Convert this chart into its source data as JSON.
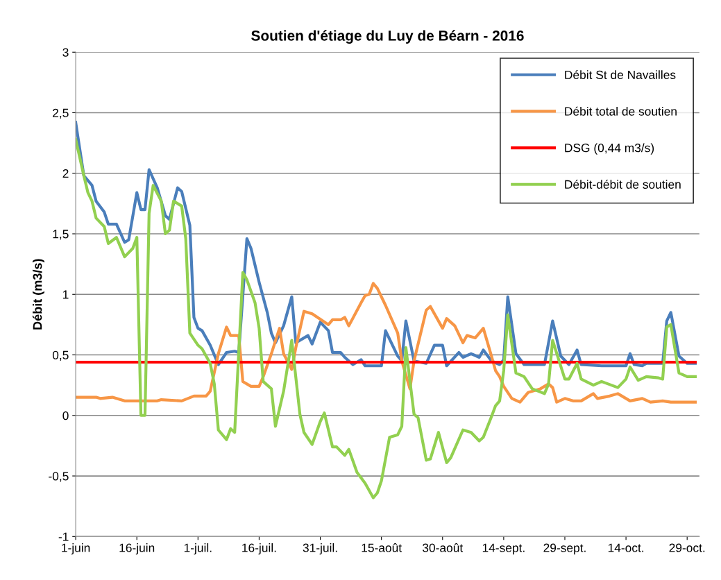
{
  "chart_data": {
    "type": "line",
    "title": "Soutien d'étiage du Luy de Béarn - 2016",
    "ylabel": "Débit (m3/s)",
    "xlim": [
      "2016-06-01",
      "2016-11-01"
    ],
    "xticks": [
      {
        "value": "2016-06-01",
        "label": "1-juin"
      },
      {
        "value": "2016-06-16",
        "label": "16-juin"
      },
      {
        "value": "2016-07-01",
        "label": "1-juil."
      },
      {
        "value": "2016-07-16",
        "label": "16-juil."
      },
      {
        "value": "2016-07-31",
        "label": "31-juil."
      },
      {
        "value": "2016-08-15",
        "label": "15-août"
      },
      {
        "value": "2016-08-30",
        "label": "30-août"
      },
      {
        "value": "2016-09-14",
        "label": "14-sept."
      },
      {
        "value": "2016-09-29",
        "label": "29-sept."
      },
      {
        "value": "2016-10-14",
        "label": "14-oct."
      },
      {
        "value": "2016-10-29",
        "label": "29-oct."
      }
    ],
    "ylim": [
      -1,
      3
    ],
    "yticks": [
      {
        "value": -1,
        "label": "-1"
      },
      {
        "value": -0.5,
        "label": "-0,5"
      },
      {
        "value": 0,
        "label": "0"
      },
      {
        "value": 0.5,
        "label": "0,5"
      },
      {
        "value": 1,
        "label": "1"
      },
      {
        "value": 1.5,
        "label": "1,5"
      },
      {
        "value": 2,
        "label": "2"
      },
      {
        "value": 2.5,
        "label": "2,5"
      },
      {
        "value": 3,
        "label": "3"
      }
    ],
    "grid": "y",
    "legend": "top right",
    "series": [
      {
        "name": "Débit St de Navailles",
        "color": "#4a7ebb",
        "x": [
          "2016-06-01",
          "2016-06-03",
          "2016-06-05",
          "2016-06-06",
          "2016-06-08",
          "2016-06-09",
          "2016-06-11",
          "2016-06-13",
          "2016-06-14",
          "2016-06-16",
          "2016-06-17",
          "2016-06-18",
          "2016-06-19",
          "2016-06-21",
          "2016-06-23",
          "2016-06-24",
          "2016-06-26",
          "2016-06-27",
          "2016-06-29",
          "2016-06-30",
          "2016-07-01",
          "2016-07-02",
          "2016-07-04",
          "2016-07-06",
          "2016-07-08",
          "2016-07-10",
          "2016-07-11",
          "2016-07-13",
          "2016-07-14",
          "2016-07-16",
          "2016-07-18",
          "2016-07-19",
          "2016-07-20",
          "2016-07-22",
          "2016-07-24",
          "2016-07-25",
          "2016-07-28",
          "2016-07-29",
          "2016-07-31",
          "2016-08-02",
          "2016-08-03",
          "2016-08-05",
          "2016-08-06",
          "2016-08-08",
          "2016-08-10",
          "2016-08-11",
          "2016-08-15",
          "2016-08-16",
          "2016-08-19",
          "2016-08-20",
          "2016-08-21",
          "2016-08-23",
          "2016-08-26",
          "2016-08-28",
          "2016-08-30",
          "2016-08-31",
          "2016-09-03",
          "2016-09-04",
          "2016-09-06",
          "2016-09-08",
          "2016-09-09",
          "2016-09-11",
          "2016-09-13",
          "2016-09-14",
          "2016-09-15",
          "2016-09-17",
          "2016-09-19",
          "2016-09-24",
          "2016-09-26",
          "2016-09-28",
          "2016-09-30",
          "2016-10-02",
          "2016-10-03",
          "2016-10-08",
          "2016-10-14",
          "2016-10-15",
          "2016-10-16",
          "2016-10-18",
          "2016-10-19",
          "2016-10-23",
          "2016-10-24",
          "2016-10-25",
          "2016-10-27",
          "2016-10-29",
          "2016-10-31"
        ],
        "values": [
          2.42,
          1.98,
          1.9,
          1.77,
          1.68,
          1.58,
          1.58,
          1.43,
          1.45,
          1.84,
          1.7,
          1.7,
          2.03,
          1.88,
          1.65,
          1.62,
          1.88,
          1.85,
          1.57,
          0.81,
          0.72,
          0.7,
          0.58,
          0.42,
          0.52,
          0.53,
          0.52,
          1.46,
          1.38,
          1.1,
          0.85,
          0.68,
          0.6,
          0.74,
          0.98,
          0.6,
          0.66,
          0.59,
          0.77,
          0.7,
          0.52,
          0.52,
          0.48,
          0.42,
          0.46,
          0.41,
          0.41,
          0.7,
          0.49,
          0.45,
          0.78,
          0.45,
          0.43,
          0.58,
          0.58,
          0.41,
          0.52,
          0.48,
          0.51,
          0.48,
          0.54,
          0.45,
          0.42,
          0.46,
          0.98,
          0.51,
          0.42,
          0.42,
          0.78,
          0.49,
          0.42,
          0.54,
          0.42,
          0.41,
          0.41,
          0.51,
          0.42,
          0.41,
          0.43,
          0.43,
          0.78,
          0.85,
          0.49,
          0.43,
          0.43
        ]
      },
      {
        "name": "Débit total de soutien",
        "color": "#f79646",
        "x": [
          "2016-06-01",
          "2016-06-06",
          "2016-06-07",
          "2016-06-10",
          "2016-06-13",
          "2016-06-21",
          "2016-06-22",
          "2016-06-27",
          "2016-06-30",
          "2016-07-03",
          "2016-07-04",
          "2016-07-06",
          "2016-07-08",
          "2016-07-09",
          "2016-07-11",
          "2016-07-12",
          "2016-07-14",
          "2016-07-16",
          "2016-07-17",
          "2016-07-19",
          "2016-07-21",
          "2016-07-22",
          "2016-07-24",
          "2016-07-25",
          "2016-07-27",
          "2016-07-29",
          "2016-08-02",
          "2016-08-03",
          "2016-08-05",
          "2016-08-06",
          "2016-08-07",
          "2016-08-10",
          "2016-08-11",
          "2016-08-12",
          "2016-08-13",
          "2016-08-14",
          "2016-08-16",
          "2016-08-19",
          "2016-08-20",
          "2016-08-22",
          "2016-08-23",
          "2016-08-26",
          "2016-08-27",
          "2016-08-30",
          "2016-08-31",
          "2016-09-02",
          "2016-09-04",
          "2016-09-05",
          "2016-09-07",
          "2016-09-09",
          "2016-09-11",
          "2016-09-12",
          "2016-09-13",
          "2016-09-14",
          "2016-09-16",
          "2016-09-18",
          "2016-09-20",
          "2016-09-23",
          "2016-09-25",
          "2016-09-26",
          "2016-09-27",
          "2016-09-29",
          "2016-10-01",
          "2016-10-03",
          "2016-10-06",
          "2016-10-07",
          "2016-10-10",
          "2016-10-12",
          "2016-10-15",
          "2016-10-18",
          "2016-10-20",
          "2016-10-23",
          "2016-10-25",
          "2016-10-31"
        ],
        "values": [
          0.15,
          0.15,
          0.14,
          0.15,
          0.12,
          0.12,
          0.13,
          0.12,
          0.16,
          0.16,
          0.2,
          0.51,
          0.73,
          0.66,
          0.66,
          0.28,
          0.24,
          0.24,
          0.32,
          0.51,
          0.72,
          0.51,
          0.38,
          0.56,
          0.86,
          0.84,
          0.75,
          0.79,
          0.79,
          0.81,
          0.74,
          0.93,
          0.99,
          1.0,
          1.09,
          1.05,
          0.91,
          0.68,
          0.45,
          0.22,
          0.45,
          0.87,
          0.9,
          0.72,
          0.8,
          0.74,
          0.6,
          0.66,
          0.64,
          0.72,
          0.49,
          0.37,
          0.32,
          0.24,
          0.14,
          0.11,
          0.19,
          0.22,
          0.26,
          0.23,
          0.11,
          0.14,
          0.12,
          0.12,
          0.18,
          0.14,
          0.16,
          0.18,
          0.12,
          0.14,
          0.11,
          0.12,
          0.11,
          0.11
        ]
      },
      {
        "name": "DSG (0,44 m3/s)",
        "color": "#ff0000",
        "x": [
          "2016-06-01",
          "2016-10-31"
        ],
        "values": [
          0.44,
          0.44
        ]
      },
      {
        "name": "Débit-débit de soutien",
        "color": "#92d050",
        "x": [
          "2016-06-01",
          "2016-06-03",
          "2016-06-04",
          "2016-06-05",
          "2016-06-06",
          "2016-06-08",
          "2016-06-09",
          "2016-06-11",
          "2016-06-13",
          "2016-06-15",
          "2016-06-16",
          "2016-06-17",
          "2016-06-18",
          "2016-06-19",
          "2016-06-20",
          "2016-06-22",
          "2016-06-23",
          "2016-06-24",
          "2016-06-25",
          "2016-06-27",
          "2016-06-28",
          "2016-06-29",
          "2016-07-01",
          "2016-07-02",
          "2016-07-04",
          "2016-07-05",
          "2016-07-06",
          "2016-07-08",
          "2016-07-09",
          "2016-07-10",
          "2016-07-12",
          "2016-07-13",
          "2016-07-15",
          "2016-07-16",
          "2016-07-17",
          "2016-07-19",
          "2016-07-20",
          "2016-07-22",
          "2016-07-24",
          "2016-07-26",
          "2016-07-27",
          "2016-07-29",
          "2016-07-31",
          "2016-08-01",
          "2016-08-03",
          "2016-08-04",
          "2016-08-06",
          "2016-08-07",
          "2016-08-09",
          "2016-08-11",
          "2016-08-13",
          "2016-08-14",
          "2016-08-15",
          "2016-08-17",
          "2016-08-19",
          "2016-08-20",
          "2016-08-21",
          "2016-08-23",
          "2016-08-24",
          "2016-08-26",
          "2016-08-27",
          "2016-08-29",
          "2016-08-31",
          "2016-09-01",
          "2016-09-04",
          "2016-09-06",
          "2016-09-08",
          "2016-09-09",
          "2016-09-11",
          "2016-09-12",
          "2016-09-13",
          "2016-09-14",
          "2016-09-15",
          "2016-09-17",
          "2016-09-19",
          "2016-09-21",
          "2016-09-24",
          "2016-09-25",
          "2016-09-26",
          "2016-09-29",
          "2016-09-30",
          "2016-10-02",
          "2016-10-03",
          "2016-10-06",
          "2016-10-08",
          "2016-10-12",
          "2016-10-14",
          "2016-10-15",
          "2016-10-17",
          "2016-10-19",
          "2016-10-22",
          "2016-10-23",
          "2016-10-24",
          "2016-10-25",
          "2016-10-27",
          "2016-10-29",
          "2016-10-31"
        ],
        "values": [
          2.28,
          1.98,
          1.84,
          1.77,
          1.63,
          1.56,
          1.42,
          1.47,
          1.31,
          1.38,
          1.47,
          0.0,
          0.0,
          1.67,
          1.9,
          1.77,
          1.5,
          1.53,
          1.77,
          1.73,
          1.46,
          0.68,
          0.58,
          0.55,
          0.43,
          0.26,
          -0.12,
          -0.2,
          -0.11,
          -0.14,
          1.18,
          1.12,
          0.93,
          0.72,
          0.28,
          0.22,
          -0.09,
          0.2,
          0.62,
          0.01,
          -0.14,
          -0.24,
          -0.05,
          0.02,
          -0.26,
          -0.26,
          -0.33,
          -0.28,
          -0.47,
          -0.56,
          -0.68,
          -0.64,
          -0.54,
          -0.18,
          -0.16,
          -0.09,
          0.56,
          0.01,
          -0.02,
          -0.37,
          -0.36,
          -0.14,
          -0.39,
          -0.35,
          -0.12,
          -0.14,
          -0.21,
          -0.18,
          -0.01,
          0.08,
          0.12,
          0.37,
          0.83,
          0.35,
          0.32,
          0.22,
          0.18,
          0.26,
          0.62,
          0.3,
          0.3,
          0.43,
          0.3,
          0.25,
          0.28,
          0.23,
          0.3,
          0.4,
          0.29,
          0.32,
          0.31,
          0.3,
          0.73,
          0.75,
          0.35,
          0.32,
          0.32
        ]
      }
    ]
  }
}
